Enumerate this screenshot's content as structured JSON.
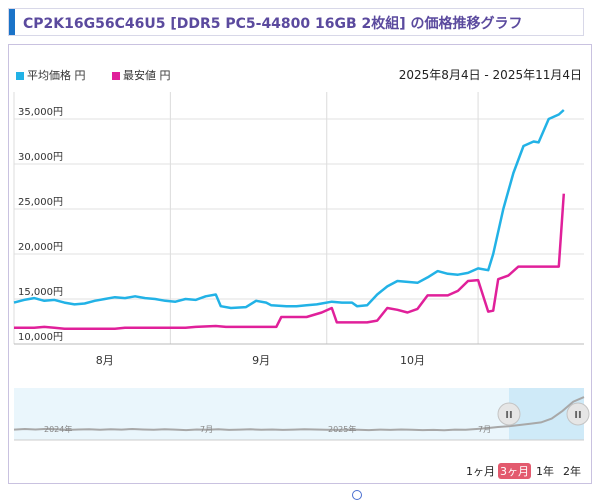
{
  "title": "CP2K16G56C46U5 [DDR5 PC5-44800 16GB 2枚組] の価格推移グラフ",
  "legend": {
    "avg": "平均価格 円",
    "min": "最安値 円"
  },
  "date_range": {
    "start": "2025年8月4日",
    "sep": " - ",
    "end": "2025年11月4日"
  },
  "colors": {
    "avg": "#22b2e6",
    "min": "#e0209a",
    "accent": "#1a73c8",
    "title": "#5b4a9e",
    "active_btn": "#e35a6e"
  },
  "range_buttons": [
    {
      "label": "1ヶ月",
      "active": false
    },
    {
      "label": "3ヶ月",
      "active": true
    },
    {
      "label": "1年",
      "active": false
    },
    {
      "label": "2年",
      "active": false
    }
  ],
  "navigator": {
    "labels": [
      "2024年",
      "7月",
      "2025年",
      "7月"
    ],
    "handle_glyph": "II"
  },
  "chart_data": {
    "type": "line",
    "x_unit": "day index from 2025-07-14",
    "xlim": [
      0,
      113
    ],
    "ylim": [
      10000,
      38000
    ],
    "y_ticks": [
      10000,
      15000,
      20000,
      25000,
      30000,
      35000
    ],
    "y_tick_labels": [
      "10,000円",
      "15,000円",
      "20,000円",
      "25,000円",
      "30,000円",
      "35,000円"
    ],
    "month_ticks": [
      {
        "label": "8月",
        "x": 18
      },
      {
        "label": "9月",
        "x": 49
      },
      {
        "label": "10月",
        "x": 79
      }
    ],
    "gridlines_x": [
      0,
      31,
      62,
      92
    ],
    "series": [
      {
        "name": "平均価格",
        "points": [
          [
            0,
            14600
          ],
          [
            2,
            14900
          ],
          [
            4,
            15100
          ],
          [
            6,
            14800
          ],
          [
            8,
            14900
          ],
          [
            10,
            14600
          ],
          [
            12,
            14400
          ],
          [
            14,
            14500
          ],
          [
            16,
            14800
          ],
          [
            18,
            15000
          ],
          [
            20,
            15200
          ],
          [
            22,
            15100
          ],
          [
            24,
            15300
          ],
          [
            26,
            15100
          ],
          [
            28,
            15000
          ],
          [
            30,
            14800
          ],
          [
            32,
            14700
          ],
          [
            34,
            15000
          ],
          [
            36,
            14900
          ],
          [
            38,
            15300
          ],
          [
            40,
            15500
          ],
          [
            41,
            14200
          ],
          [
            43,
            14000
          ],
          [
            46,
            14100
          ],
          [
            48,
            14800
          ],
          [
            50,
            14600
          ],
          [
            51,
            14300
          ],
          [
            54,
            14200
          ],
          [
            56,
            14200
          ],
          [
            58,
            14300
          ],
          [
            60,
            14400
          ],
          [
            61,
            14500
          ],
          [
            63,
            14700
          ],
          [
            65,
            14600
          ],
          [
            67,
            14600
          ],
          [
            68,
            14200
          ],
          [
            70,
            14300
          ],
          [
            72,
            15500
          ],
          [
            74,
            16400
          ],
          [
            76,
            17000
          ],
          [
            78,
            16900
          ],
          [
            80,
            16800
          ],
          [
            82,
            17400
          ],
          [
            84,
            18100
          ],
          [
            86,
            17800
          ],
          [
            88,
            17700
          ],
          [
            90,
            17900
          ],
          [
            92,
            18400
          ],
          [
            94,
            18200
          ],
          [
            95,
            20000
          ],
          [
            97,
            25000
          ],
          [
            99,
            29000
          ],
          [
            101,
            32000
          ],
          [
            103,
            32500
          ],
          [
            104,
            32400
          ],
          [
            106,
            35000
          ],
          [
            108,
            35500
          ],
          [
            109,
            36000
          ]
        ]
      },
      {
        "name": "最安値",
        "points": [
          [
            0,
            11800
          ],
          [
            4,
            11800
          ],
          [
            6,
            11900
          ],
          [
            8,
            11800
          ],
          [
            10,
            11700
          ],
          [
            20,
            11700
          ],
          [
            22,
            11800
          ],
          [
            34,
            11800
          ],
          [
            36,
            11900
          ],
          [
            40,
            12000
          ],
          [
            42,
            11900
          ],
          [
            52,
            11900
          ],
          [
            53,
            13000
          ],
          [
            58,
            13000
          ],
          [
            61,
            13500
          ],
          [
            63,
            14000
          ],
          [
            64,
            12400
          ],
          [
            70,
            12400
          ],
          [
            72,
            12600
          ],
          [
            74,
            14000
          ],
          [
            76,
            13800
          ],
          [
            78,
            13500
          ],
          [
            80,
            13900
          ],
          [
            82,
            15400
          ],
          [
            86,
            15400
          ],
          [
            88,
            15900
          ],
          [
            90,
            17000
          ],
          [
            92,
            17100
          ],
          [
            94,
            13600
          ],
          [
            95,
            13700
          ],
          [
            96,
            17200
          ],
          [
            98,
            17600
          ],
          [
            100,
            18600
          ],
          [
            108,
            18600
          ],
          [
            109,
            26700
          ]
        ]
      }
    ],
    "navigator_series": {
      "name": "平均価格 (全期間)",
      "values": [
        14800,
        15200,
        14900,
        15300,
        15000,
        14600,
        14900,
        15100,
        14700,
        15000,
        14800,
        15200,
        14900,
        14700,
        15000,
        14800,
        14500,
        14900,
        14700,
        15000,
        14600,
        14800,
        15000,
        14700,
        14900,
        14600,
        14800,
        15100,
        14900,
        14700,
        14600,
        14800,
        14700,
        14500,
        14800,
        14600,
        14900,
        14700,
        14500,
        14600,
        14400,
        14800,
        14700,
        15200,
        15800,
        16500,
        17000,
        17800,
        18600,
        19500,
        22000,
        27000,
        33000,
        36000
      ]
    }
  }
}
